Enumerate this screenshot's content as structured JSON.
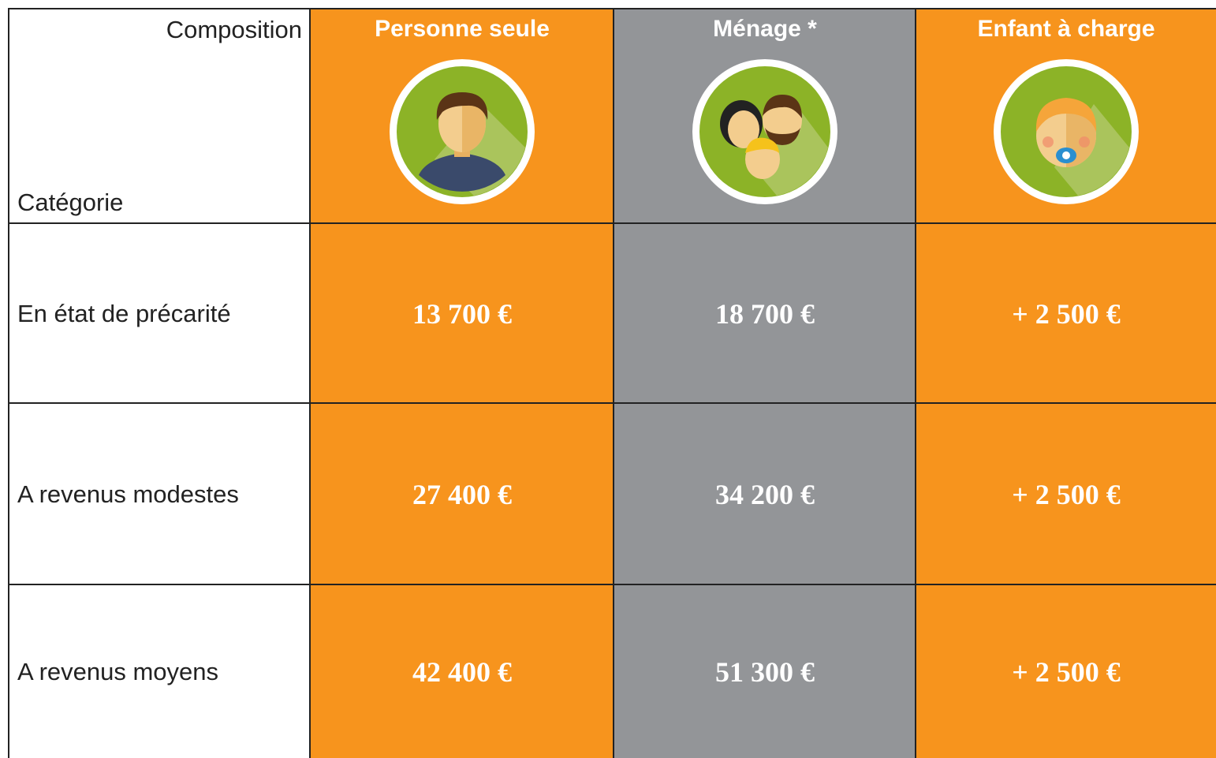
{
  "header": {
    "composition": "Composition",
    "category": "Catégorie",
    "columns": [
      "Personne seule",
      "Ménage *",
      "Enfant à charge"
    ]
  },
  "table": {
    "rows": [
      {
        "label": "En état de précarité",
        "cells": [
          "13 700 €",
          "18 700 €",
          "+ 2 500 €"
        ]
      },
      {
        "label": "A revenus modestes",
        "cells": [
          "27 400 €",
          "34 200 €",
          "+ 2 500 €"
        ]
      },
      {
        "label": "A revenus moyens",
        "cells": [
          "42 400 €",
          "51 300 €",
          "+ 2 500 €"
        ]
      }
    ]
  }
}
